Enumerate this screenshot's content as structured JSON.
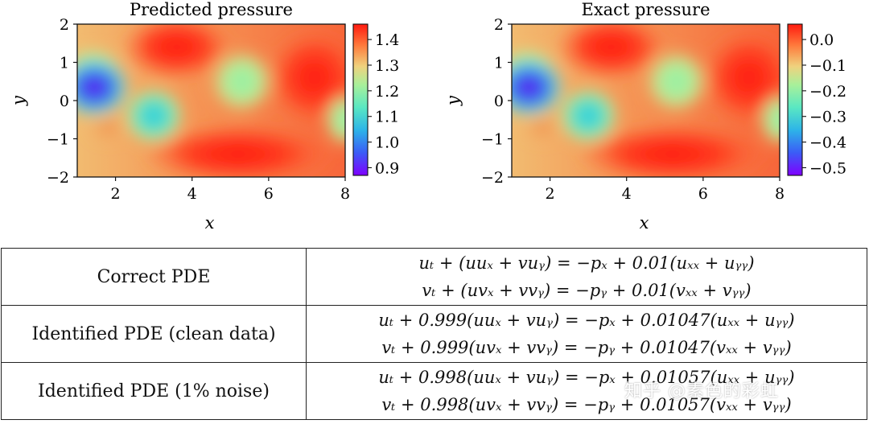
{
  "panels": [
    {
      "title": "Predicted pressure",
      "xlabel": "x",
      "ylabel": "y",
      "x_ticks": [
        "2",
        "4",
        "6",
        "8"
      ],
      "y_ticks": [
        "2",
        "1",
        "0",
        "−1",
        "−2"
      ],
      "colorbar_ticks": [
        "1.4",
        "1.3",
        "1.2",
        "1.1",
        "1.0",
        "0.9"
      ]
    },
    {
      "title": "Exact pressure",
      "xlabel": "x",
      "ylabel": "y",
      "x_ticks": [
        "2",
        "4",
        "6",
        "8"
      ],
      "y_ticks": [
        "2",
        "1",
        "0",
        "−1",
        "−2"
      ],
      "colorbar_ticks": [
        "0.0",
        "−0.1",
        "−0.2",
        "−0.3",
        "−0.4",
        "−0.5"
      ]
    }
  ],
  "chart_data": [
    {
      "type": "heatmap",
      "title": "Predicted pressure",
      "xlabel": "x",
      "ylabel": "y",
      "xlim": [
        1,
        8
      ],
      "ylim": [
        -2,
        2
      ],
      "colormap": "rainbow",
      "color_range": [
        0.87,
        1.46
      ],
      "colorbar_ticks": [
        1.4,
        1.3,
        1.2,
        1.1,
        1.0,
        0.9
      ]
    },
    {
      "type": "heatmap",
      "title": "Exact pressure",
      "xlabel": "x",
      "ylabel": "y",
      "xlim": [
        1,
        8
      ],
      "ylim": [
        -2,
        2
      ],
      "colormap": "rainbow",
      "color_range": [
        -0.53,
        0.06
      ],
      "colorbar_ticks": [
        0.0,
        -0.1,
        -0.2,
        -0.3,
        -0.4,
        -0.5
      ]
    }
  ],
  "table": {
    "rows": [
      {
        "label": "Correct PDE",
        "eq1": "uₜ + (uuₓ + vuᵧ) = −pₓ + 0.01(uₓₓ + uᵧᵧ)",
        "eq2": "vₜ + (uvₓ + vvᵧ) = −pᵧ + 0.01(vₓₓ + vᵧᵧ)"
      },
      {
        "label": "Identified PDE (clean data)",
        "eq1": "uₜ + 0.999(uuₓ + vuᵧ) = −pₓ + 0.01047(uₓₓ + uᵧᵧ)",
        "eq2": "vₜ + 0.999(uvₓ + vvᵧ) = −pᵧ + 0.01047(vₓₓ + vᵧᵧ)"
      },
      {
        "label": "Identified PDE (1% noise)",
        "eq1": "uₜ + 0.998(uuₓ + vuᵧ) = −pₓ + 0.01057(uₓₓ + uᵧᵧ)",
        "eq2": "vₜ + 0.998(uvₓ + vvᵧ) = −pᵧ + 0.01057(vₓₓ + vᵧᵧ)"
      }
    ]
  },
  "watermark": "知乎 @素色的彩虹"
}
